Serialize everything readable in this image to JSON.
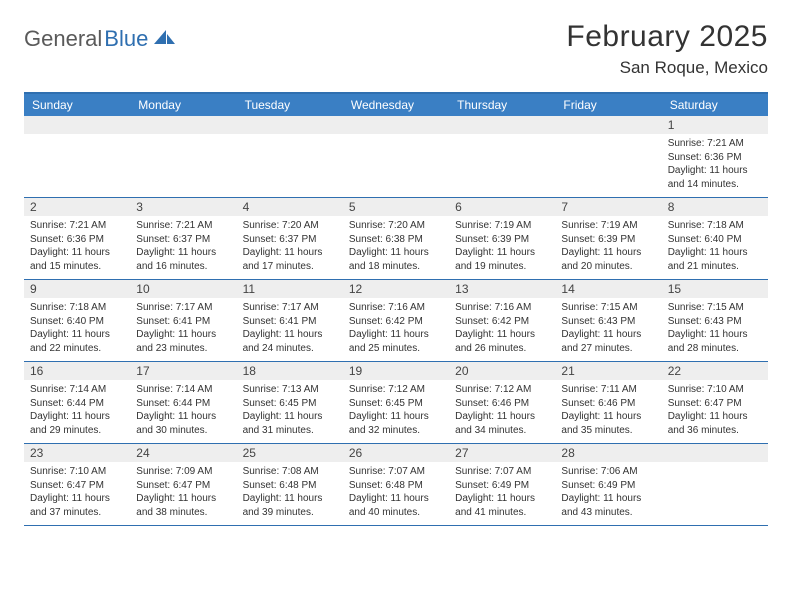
{
  "brand": {
    "part1": "General",
    "part2": "Blue"
  },
  "title": "February 2025",
  "location": "San Roque, Mexico",
  "colors": {
    "header_bg": "#3a7fc4",
    "header_text": "#ffffff",
    "rule": "#2f6fb0",
    "daynum_bg": "#eeeeee",
    "text": "#333333",
    "logo_gray": "#5a5a5a",
    "logo_blue": "#2f6fb0",
    "background": "#ffffff"
  },
  "day_names": [
    "Sunday",
    "Monday",
    "Tuesday",
    "Wednesday",
    "Thursday",
    "Friday",
    "Saturday"
  ],
  "weeks": [
    [
      {
        "n": "",
        "lines": []
      },
      {
        "n": "",
        "lines": []
      },
      {
        "n": "",
        "lines": []
      },
      {
        "n": "",
        "lines": []
      },
      {
        "n": "",
        "lines": []
      },
      {
        "n": "",
        "lines": []
      },
      {
        "n": "1",
        "lines": [
          "Sunrise: 7:21 AM",
          "Sunset: 6:36 PM",
          "Daylight: 11 hours and 14 minutes."
        ]
      }
    ],
    [
      {
        "n": "2",
        "lines": [
          "Sunrise: 7:21 AM",
          "Sunset: 6:36 PM",
          "Daylight: 11 hours and 15 minutes."
        ]
      },
      {
        "n": "3",
        "lines": [
          "Sunrise: 7:21 AM",
          "Sunset: 6:37 PM",
          "Daylight: 11 hours and 16 minutes."
        ]
      },
      {
        "n": "4",
        "lines": [
          "Sunrise: 7:20 AM",
          "Sunset: 6:37 PM",
          "Daylight: 11 hours and 17 minutes."
        ]
      },
      {
        "n": "5",
        "lines": [
          "Sunrise: 7:20 AM",
          "Sunset: 6:38 PM",
          "Daylight: 11 hours and 18 minutes."
        ]
      },
      {
        "n": "6",
        "lines": [
          "Sunrise: 7:19 AM",
          "Sunset: 6:39 PM",
          "Daylight: 11 hours and 19 minutes."
        ]
      },
      {
        "n": "7",
        "lines": [
          "Sunrise: 7:19 AM",
          "Sunset: 6:39 PM",
          "Daylight: 11 hours and 20 minutes."
        ]
      },
      {
        "n": "8",
        "lines": [
          "Sunrise: 7:18 AM",
          "Sunset: 6:40 PM",
          "Daylight: 11 hours and 21 minutes."
        ]
      }
    ],
    [
      {
        "n": "9",
        "lines": [
          "Sunrise: 7:18 AM",
          "Sunset: 6:40 PM",
          "Daylight: 11 hours and 22 minutes."
        ]
      },
      {
        "n": "10",
        "lines": [
          "Sunrise: 7:17 AM",
          "Sunset: 6:41 PM",
          "Daylight: 11 hours and 23 minutes."
        ]
      },
      {
        "n": "11",
        "lines": [
          "Sunrise: 7:17 AM",
          "Sunset: 6:41 PM",
          "Daylight: 11 hours and 24 minutes."
        ]
      },
      {
        "n": "12",
        "lines": [
          "Sunrise: 7:16 AM",
          "Sunset: 6:42 PM",
          "Daylight: 11 hours and 25 minutes."
        ]
      },
      {
        "n": "13",
        "lines": [
          "Sunrise: 7:16 AM",
          "Sunset: 6:42 PM",
          "Daylight: 11 hours and 26 minutes."
        ]
      },
      {
        "n": "14",
        "lines": [
          "Sunrise: 7:15 AM",
          "Sunset: 6:43 PM",
          "Daylight: 11 hours and 27 minutes."
        ]
      },
      {
        "n": "15",
        "lines": [
          "Sunrise: 7:15 AM",
          "Sunset: 6:43 PM",
          "Daylight: 11 hours and 28 minutes."
        ]
      }
    ],
    [
      {
        "n": "16",
        "lines": [
          "Sunrise: 7:14 AM",
          "Sunset: 6:44 PM",
          "Daylight: 11 hours and 29 minutes."
        ]
      },
      {
        "n": "17",
        "lines": [
          "Sunrise: 7:14 AM",
          "Sunset: 6:44 PM",
          "Daylight: 11 hours and 30 minutes."
        ]
      },
      {
        "n": "18",
        "lines": [
          "Sunrise: 7:13 AM",
          "Sunset: 6:45 PM",
          "Daylight: 11 hours and 31 minutes."
        ]
      },
      {
        "n": "19",
        "lines": [
          "Sunrise: 7:12 AM",
          "Sunset: 6:45 PM",
          "Daylight: 11 hours and 32 minutes."
        ]
      },
      {
        "n": "20",
        "lines": [
          "Sunrise: 7:12 AM",
          "Sunset: 6:46 PM",
          "Daylight: 11 hours and 34 minutes."
        ]
      },
      {
        "n": "21",
        "lines": [
          "Sunrise: 7:11 AM",
          "Sunset: 6:46 PM",
          "Daylight: 11 hours and 35 minutes."
        ]
      },
      {
        "n": "22",
        "lines": [
          "Sunrise: 7:10 AM",
          "Sunset: 6:47 PM",
          "Daylight: 11 hours and 36 minutes."
        ]
      }
    ],
    [
      {
        "n": "23",
        "lines": [
          "Sunrise: 7:10 AM",
          "Sunset: 6:47 PM",
          "Daylight: 11 hours and 37 minutes."
        ]
      },
      {
        "n": "24",
        "lines": [
          "Sunrise: 7:09 AM",
          "Sunset: 6:47 PM",
          "Daylight: 11 hours and 38 minutes."
        ]
      },
      {
        "n": "25",
        "lines": [
          "Sunrise: 7:08 AM",
          "Sunset: 6:48 PM",
          "Daylight: 11 hours and 39 minutes."
        ]
      },
      {
        "n": "26",
        "lines": [
          "Sunrise: 7:07 AM",
          "Sunset: 6:48 PM",
          "Daylight: 11 hours and 40 minutes."
        ]
      },
      {
        "n": "27",
        "lines": [
          "Sunrise: 7:07 AM",
          "Sunset: 6:49 PM",
          "Daylight: 11 hours and 41 minutes."
        ]
      },
      {
        "n": "28",
        "lines": [
          "Sunrise: 7:06 AM",
          "Sunset: 6:49 PM",
          "Daylight: 11 hours and 43 minutes."
        ]
      },
      {
        "n": "",
        "lines": []
      }
    ]
  ]
}
